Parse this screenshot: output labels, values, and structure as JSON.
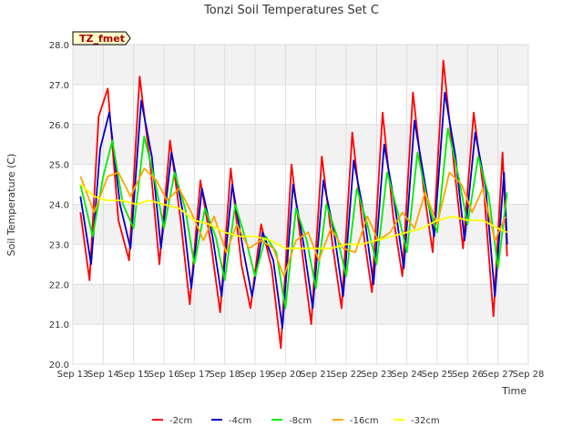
{
  "chart_data": {
    "type": "line",
    "title": "Tonzi Soil Temperatures Set C",
    "xlabel": "Time",
    "ylabel": "Soil Temperature (C)",
    "annotation": "TZ_fmet",
    "xlim": [
      13,
      28
    ],
    "ylim": [
      20.0,
      28.0
    ],
    "grid": true,
    "legend_position": "bottom",
    "x_ticks": [
      {
        "x": 13,
        "label": "Sep 13"
      },
      {
        "x": 14,
        "label": "Sep 14"
      },
      {
        "x": 15,
        "label": "Sep 15"
      },
      {
        "x": 16,
        "label": "Sep 16"
      },
      {
        "x": 17,
        "label": "Sep 17"
      },
      {
        "x": 18,
        "label": "Sep 18"
      },
      {
        "x": 19,
        "label": "Sep 19"
      },
      {
        "x": 20,
        "label": "Sep 20"
      },
      {
        "x": 21,
        "label": "Sep 21"
      },
      {
        "x": 22,
        "label": "Sep 22"
      },
      {
        "x": 23,
        "label": "Sep 23"
      },
      {
        "x": 24,
        "label": "Sep 24"
      },
      {
        "x": 25,
        "label": "Sep 25"
      },
      {
        "x": 26,
        "label": "Sep 26"
      },
      {
        "x": 27,
        "label": "Sep 27"
      },
      {
        "x": 28,
        "label": "Sep 28"
      }
    ],
    "y_ticks": [
      {
        "y": 20.0,
        "label": "20.0"
      },
      {
        "y": 21.0,
        "label": "21.0"
      },
      {
        "y": 22.0,
        "label": "22.0"
      },
      {
        "y": 23.0,
        "label": "23.0"
      },
      {
        "y": 24.0,
        "label": "24.0"
      },
      {
        "y": 25.0,
        "label": "25.0"
      },
      {
        "y": 26.0,
        "label": "26.0"
      },
      {
        "y": 27.0,
        "label": "27.0"
      },
      {
        "y": 28.0,
        "label": "28.0"
      }
    ],
    "series": [
      {
        "name": "-2cm",
        "color": "#ff0000",
        "x": [
          13.25,
          13.55,
          13.85,
          14.15,
          14.5,
          14.85,
          15.2,
          15.55,
          15.85,
          16.2,
          16.55,
          16.85,
          17.2,
          17.55,
          17.85,
          18.2,
          18.55,
          18.85,
          19.2,
          19.55,
          19.85,
          20.2,
          20.55,
          20.85,
          21.2,
          21.55,
          21.85,
          22.2,
          22.55,
          22.85,
          23.2,
          23.55,
          23.85,
          24.2,
          24.55,
          24.85,
          25.2,
          25.55,
          25.85,
          26.2,
          26.55,
          26.85,
          27.15,
          27.3
        ],
        "y": [
          23.8,
          22.1,
          26.2,
          26.9,
          23.6,
          22.6,
          27.2,
          25.0,
          22.5,
          25.6,
          23.6,
          21.5,
          24.6,
          23.0,
          21.3,
          24.9,
          22.5,
          21.4,
          23.5,
          22.4,
          20.4,
          25.0,
          22.8,
          21.0,
          25.2,
          23.0,
          21.4,
          25.8,
          23.4,
          21.8,
          26.3,
          23.7,
          22.2,
          26.8,
          24.4,
          22.8,
          27.6,
          25.0,
          22.9,
          26.3,
          24.2,
          21.2,
          25.3,
          22.7
        ]
      },
      {
        "name": "-4cm",
        "color": "#0000cc",
        "x": [
          13.25,
          13.6,
          13.9,
          14.2,
          14.55,
          14.9,
          15.25,
          15.6,
          15.9,
          16.25,
          16.6,
          16.9,
          17.25,
          17.6,
          17.9,
          18.25,
          18.6,
          18.9,
          19.25,
          19.6,
          19.9,
          20.25,
          20.6,
          20.9,
          21.25,
          21.6,
          21.9,
          22.25,
          22.6,
          22.9,
          23.25,
          23.6,
          23.9,
          24.25,
          24.6,
          24.9,
          25.25,
          25.6,
          25.9,
          26.25,
          26.6,
          26.9,
          27.2,
          27.3
        ],
        "y": [
          24.2,
          22.5,
          25.4,
          26.3,
          24.0,
          22.9,
          26.6,
          25.2,
          22.9,
          25.3,
          23.9,
          21.9,
          24.4,
          23.2,
          21.7,
          24.5,
          22.9,
          21.7,
          23.3,
          22.6,
          20.9,
          24.5,
          23.0,
          21.4,
          24.6,
          23.3,
          21.7,
          25.1,
          23.7,
          22.0,
          25.5,
          24.0,
          22.4,
          26.1,
          24.5,
          23.2,
          26.8,
          25.2,
          23.1,
          25.8,
          24.4,
          21.7,
          24.8,
          23.0
        ]
      },
      {
        "name": "-8cm",
        "color": "#00ee00",
        "x": [
          13.25,
          13.65,
          14.0,
          14.3,
          14.65,
          15.0,
          15.35,
          15.7,
          16.0,
          16.35,
          16.7,
          17.0,
          17.35,
          17.7,
          18.0,
          18.35,
          18.7,
          19.0,
          19.35,
          19.7,
          20.0,
          20.35,
          20.7,
          21.0,
          21.35,
          21.7,
          22.0,
          22.35,
          22.7,
          23.0,
          23.35,
          23.7,
          24.0,
          24.35,
          24.7,
          25.0,
          25.35,
          25.7,
          26.0,
          26.35,
          26.7,
          27.0,
          27.3
        ],
        "y": [
          24.5,
          23.2,
          24.7,
          25.6,
          24.0,
          23.4,
          25.7,
          24.6,
          23.4,
          24.8,
          23.9,
          22.5,
          23.9,
          23.2,
          22.1,
          24.0,
          23.1,
          22.2,
          23.2,
          22.8,
          21.4,
          23.9,
          23.1,
          21.9,
          24.0,
          23.2,
          22.2,
          24.4,
          23.5,
          22.5,
          24.8,
          23.8,
          22.8,
          25.3,
          24.0,
          23.3,
          25.9,
          24.7,
          23.5,
          25.2,
          24.2,
          22.4,
          24.3
        ]
      },
      {
        "name": "-16cm",
        "color": "#ffa500",
        "x": [
          13.25,
          13.7,
          14.15,
          14.5,
          14.9,
          15.35,
          15.75,
          16.1,
          16.5,
          16.9,
          17.3,
          17.65,
          18.05,
          18.4,
          18.8,
          19.2,
          19.6,
          19.95,
          20.35,
          20.75,
          21.1,
          21.5,
          21.9,
          22.3,
          22.7,
          23.05,
          23.45,
          23.85,
          24.25,
          24.6,
          25.0,
          25.4,
          25.8,
          26.15,
          26.5,
          26.9,
          27.25
        ],
        "y": [
          24.7,
          23.8,
          24.7,
          24.8,
          24.2,
          24.9,
          24.6,
          24.1,
          24.4,
          23.8,
          23.1,
          23.7,
          22.8,
          23.5,
          22.9,
          23.1,
          22.9,
          22.2,
          23.1,
          23.3,
          22.6,
          23.4,
          22.9,
          22.8,
          23.7,
          23.1,
          23.3,
          23.8,
          23.4,
          24.3,
          23.5,
          24.8,
          24.5,
          23.8,
          24.4,
          23.1,
          23.7
        ]
      },
      {
        "name": "-32cm",
        "color": "#ffff00",
        "x": [
          13.25,
          13.7,
          14.1,
          14.6,
          15.1,
          15.5,
          16.0,
          16.5,
          17.0,
          17.5,
          18.0,
          18.5,
          19.0,
          19.5,
          20.0,
          20.5,
          21.0,
          21.5,
          22.0,
          22.5,
          23.0,
          23.5,
          24.0,
          24.5,
          25.0,
          25.5,
          26.0,
          26.5,
          27.0,
          27.3
        ],
        "y": [
          24.5,
          24.2,
          24.1,
          24.1,
          24.0,
          24.1,
          24.0,
          23.9,
          23.6,
          23.5,
          23.3,
          23.2,
          23.2,
          23.1,
          22.9,
          22.9,
          22.9,
          22.9,
          23.0,
          23.0,
          23.1,
          23.2,
          23.3,
          23.4,
          23.6,
          23.7,
          23.6,
          23.6,
          23.4,
          23.3
        ]
      }
    ]
  }
}
